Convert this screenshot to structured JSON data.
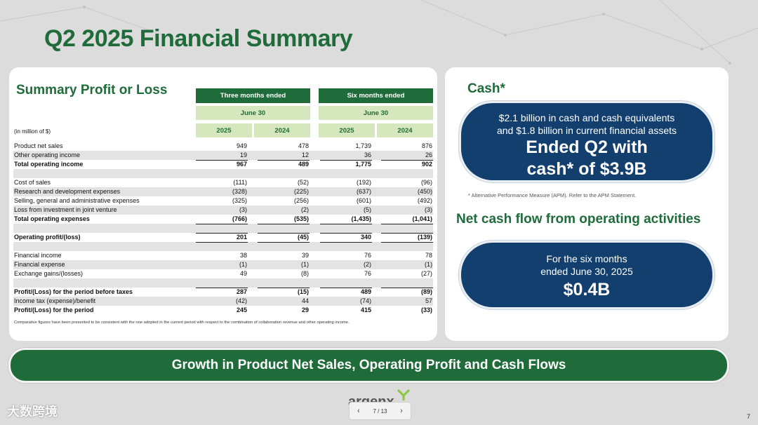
{
  "slide": {
    "title": "Q2 2025 Financial Summary",
    "page_number": "7"
  },
  "spl": {
    "title": "Summary Profit or Loss",
    "header": {
      "three_months": "Three months ended",
      "six_months": "Six months ended",
      "date": "June 30",
      "y2025": "2025",
      "y2024": "2024",
      "units": "(in million of $)"
    },
    "rows": [
      {
        "label": "Product net sales",
        "v": [
          "949",
          "478",
          "1,739",
          "876"
        ]
      },
      {
        "label": "Other operating income",
        "v": [
          "19",
          "12",
          "36",
          "26"
        ]
      },
      {
        "label": "Total operating income",
        "v": [
          "967",
          "489",
          "1,775",
          "902"
        ]
      },
      {
        "label": "Cost of sales",
        "v": [
          "(111)",
          "(52)",
          "(192)",
          "(96)"
        ]
      },
      {
        "label": "Research and development expenses",
        "v": [
          "(328)",
          "(225)",
          "(637)",
          "(450)"
        ]
      },
      {
        "label": "Selling, general and administrative expenses",
        "v": [
          "(325)",
          "(256)",
          "(601)",
          "(492)"
        ]
      },
      {
        "label": "Loss from investment in joint venture",
        "v": [
          "(3)",
          "(2)",
          "(5)",
          "(3)"
        ]
      },
      {
        "label": "Total operating expenses",
        "v": [
          "(766)",
          "(535)",
          "(1,435)",
          "(1,041)"
        ]
      },
      {
        "label": "Operating profit/(loss)",
        "v": [
          "201",
          "(45)",
          "340",
          "(139)"
        ]
      },
      {
        "label": "Financial income",
        "v": [
          "38",
          "39",
          "76",
          "78"
        ]
      },
      {
        "label": "Financial expense",
        "v": [
          "(1)",
          "(1)",
          "(2)",
          "(1)"
        ]
      },
      {
        "label": "Exchange gains/(losses)",
        "v": [
          "49",
          "(8)",
          "76",
          "(27)"
        ]
      },
      {
        "label": "Profit/(Loss) for the period before taxes",
        "v": [
          "287",
          "(15)",
          "489",
          "(89)"
        ]
      },
      {
        "label": "Income tax (expense)/benefit",
        "v": [
          "(42)",
          "44",
          "(74)",
          "57"
        ]
      },
      {
        "label": "Profit/(Loss) for the period",
        "v": [
          "245",
          "29",
          "415",
          "(33)"
        ]
      }
    ],
    "footnote": "Comparative figures have been presented to be consistent with the one adopted in the current period with respect to the combination of collaboration revenue and other operating income."
  },
  "cash": {
    "title": "Cash*",
    "line1": "$2.1 billion in cash and cash equivalents",
    "line2": "and $1.8 billion in current financial assets",
    "big1": "Ended Q2 with",
    "big2": "cash* of $3.9B",
    "apm_note": "* Alternative Performance Measure (APM). Refer to the APM Statement."
  },
  "ncf": {
    "title": "Net cash flow from operating activities",
    "line1": "For the six months",
    "line2": "ended June 30, 2025",
    "value": "$0.4B"
  },
  "banner": {
    "text": "Growth in Product Net Sales, Operating Profit and Cash Flows"
  },
  "brand": {
    "logo_text": "argenx",
    "green": "#1f6b3a",
    "navy": "#133f6e"
  },
  "pager": {
    "label": "7 / 13"
  },
  "watermark": {
    "text": "大数跨境"
  }
}
